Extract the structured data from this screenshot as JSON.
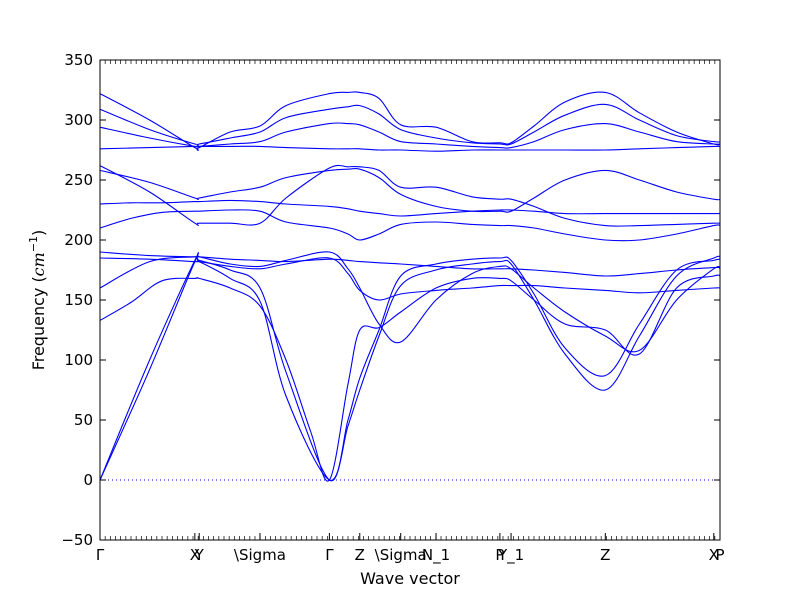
{
  "chart_data": {
    "type": "line",
    "title": "",
    "xlabel": "Wave vector",
    "ylabel_prefix": "Frequency (",
    "ylabel_unit": "cm",
    "ylabel_exp": "−1",
    "ylabel_suffix": ")",
    "ylim": [
      -50,
      350
    ],
    "yticks": [
      -50,
      0,
      50,
      100,
      150,
      200,
      250,
      300,
      350
    ],
    "xlim": [
      0,
      1
    ],
    "grid": false,
    "legend": "none",
    "line_color": "#0000ff",
    "zero_line_color": "#0000ff",
    "high_symmetry_points": [
      {
        "x": 0.0,
        "label": "Γ"
      },
      {
        "x": 0.153,
        "label": "X"
      },
      {
        "x": 0.16,
        "label": "Y"
      },
      {
        "x": 0.258,
        "label": "\\Sigma"
      },
      {
        "x": 0.37,
        "label": "Γ"
      },
      {
        "x": 0.419,
        "label": "Z"
      },
      {
        "x": 0.485,
        "label": "\\Sigma"
      },
      {
        "x": 0.542,
        "label": "N_1"
      },
      {
        "x": 0.645,
        "label": "P"
      },
      {
        "x": 0.663,
        "label": "Y_1"
      },
      {
        "x": 0.815,
        "label": "Z"
      },
      {
        "x": 0.99,
        "label": "X"
      },
      {
        "x": 1.0,
        "label": "P"
      }
    ],
    "series": [
      {
        "x": [
          0,
          0.08,
          0.153,
          0.16,
          0.21,
          0.258,
          0.3,
          0.37,
          0.4,
          0.419,
          0.45,
          0.485,
          0.542,
          0.6,
          0.645,
          0.663,
          0.7,
          0.75,
          0.815,
          0.87,
          0.93,
          0.99,
          1.0
        ],
        "values": [
          0,
          92,
          182,
          182,
          168,
          149,
          70,
          0,
          45,
          75,
          120,
          162,
          175,
          180,
          182,
          180,
          150,
          105,
          75,
          120,
          170,
          185,
          186
        ]
      },
      {
        "x": [
          0,
          0.08,
          0.153,
          0.16,
          0.21,
          0.258,
          0.3,
          0.37,
          0.4,
          0.419,
          0.45,
          0.485,
          0.542,
          0.6,
          0.645,
          0.663,
          0.7,
          0.75,
          0.815,
          0.87,
          0.93,
          0.99,
          1.0
        ],
        "values": [
          0,
          100,
          183,
          183,
          175,
          160,
          90,
          0,
          50,
          85,
          125,
          170,
          180,
          184,
          185,
          183,
          155,
          110,
          87,
          130,
          175,
          183,
          184
        ]
      },
      {
        "x": [
          0,
          0.05,
          0.1,
          0.153,
          0.16,
          0.21,
          0.258,
          0.3,
          0.34,
          0.37,
          0.4,
          0.419,
          0.45,
          0.485,
          0.542,
          0.6,
          0.645,
          0.663,
          0.7,
          0.75,
          0.815,
          0.87,
          0.93,
          0.99,
          1.0
        ],
        "values": [
          133,
          148,
          166,
          168,
          168,
          160,
          145,
          100,
          40,
          0,
          80,
          125,
          127,
          140,
          160,
          168,
          168,
          166,
          150,
          130,
          125,
          105,
          160,
          170,
          170
        ]
      },
      {
        "x": [
          0,
          0.08,
          0.153,
          0.16,
          0.21,
          0.258,
          0.3,
          0.37,
          0.4,
          0.419,
          0.45,
          0.485,
          0.542,
          0.6,
          0.645,
          0.663,
          0.7,
          0.75,
          0.815,
          0.87,
          0.93,
          0.99,
          1.0
        ],
        "values": [
          160,
          182,
          186,
          186,
          180,
          178,
          183,
          190,
          176,
          160,
          130,
          115,
          150,
          172,
          178,
          176,
          160,
          140,
          120,
          108,
          150,
          176,
          176
        ]
      },
      {
        "x": [
          0,
          0.08,
          0.153,
          0.16,
          0.21,
          0.258,
          0.3,
          0.37,
          0.4,
          0.419,
          0.45,
          0.485,
          0.542,
          0.6,
          0.645,
          0.663,
          0.7,
          0.75,
          0.815,
          0.87,
          0.93,
          0.99,
          1.0
        ],
        "values": [
          185,
          184,
          182,
          182,
          178,
          176,
          180,
          185,
          172,
          158,
          150,
          155,
          158,
          160,
          162,
          162,
          162,
          160,
          158,
          156,
          158,
          160,
          160
        ]
      },
      {
        "x": [
          0,
          0.08,
          0.153,
          0.16,
          0.21,
          0.258,
          0.3,
          0.37,
          0.4,
          0.419,
          0.45,
          0.485,
          0.542,
          0.6,
          0.645,
          0.663,
          0.7,
          0.75,
          0.815,
          0.87,
          0.93,
          0.99,
          1.0
        ],
        "values": [
          190,
          187,
          186,
          186,
          184,
          183,
          182,
          184,
          183,
          182,
          181,
          180,
          178,
          176,
          176,
          176,
          175,
          173,
          170,
          172,
          175,
          177,
          177
        ]
      },
      {
        "x": [
          0,
          0.05,
          0.1,
          0.153,
          0.16,
          0.21,
          0.258,
          0.3,
          0.37,
          0.4,
          0.419,
          0.45,
          0.485,
          0.542,
          0.6,
          0.645,
          0.663,
          0.7,
          0.75,
          0.815,
          0.87,
          0.93,
          0.99,
          1.0
        ],
        "values": [
          210,
          218,
          223,
          224,
          224,
          225,
          224,
          215,
          210,
          205,
          200,
          205,
          213,
          215,
          213,
          212,
          212,
          210,
          205,
          200,
          200,
          205,
          212,
          212
        ]
      },
      {
        "x": [
          0,
          0.05,
          0.1,
          0.153,
          0.16,
          0.21,
          0.258,
          0.3,
          0.37,
          0.4,
          0.419,
          0.45,
          0.485,
          0.542,
          0.6,
          0.645,
          0.663,
          0.7,
          0.75,
          0.815,
          0.87,
          0.93,
          0.99,
          1.0
        ],
        "values": [
          230,
          231,
          231,
          232,
          232,
          233,
          232,
          230,
          228,
          226,
          224,
          222,
          220,
          222,
          224,
          225,
          225,
          224,
          222,
          222,
          222,
          222,
          222,
          222
        ]
      },
      {
        "x": [
          0,
          0.08,
          0.153,
          0.16,
          0.21,
          0.258,
          0.3,
          0.37,
          0.4,
          0.419,
          0.45,
          0.485,
          0.542,
          0.6,
          0.645,
          0.663,
          0.7,
          0.75,
          0.815,
          0.87,
          0.93,
          0.99,
          1.0
        ],
        "values": [
          258,
          248,
          235,
          235,
          240,
          244,
          252,
          258,
          259,
          259,
          252,
          238,
          228,
          224,
          224,
          224,
          235,
          250,
          258,
          250,
          240,
          234,
          234
        ]
      },
      {
        "x": [
          0,
          0.08,
          0.153,
          0.16,
          0.21,
          0.258,
          0.3,
          0.37,
          0.4,
          0.419,
          0.45,
          0.485,
          0.542,
          0.6,
          0.645,
          0.663,
          0.7,
          0.75,
          0.815,
          0.87,
          0.93,
          0.99,
          1.0
        ],
        "values": [
          262,
          240,
          214,
          214,
          214,
          214,
          235,
          260,
          261,
          261,
          258,
          244,
          244,
          236,
          234,
          234,
          228,
          218,
          212,
          212,
          213,
          214,
          214
        ]
      },
      {
        "x": [
          0,
          0.08,
          0.153,
          0.16,
          0.21,
          0.258,
          0.3,
          0.37,
          0.4,
          0.419,
          0.45,
          0.485,
          0.542,
          0.6,
          0.645,
          0.663,
          0.7,
          0.75,
          0.815,
          0.87,
          0.93,
          0.99,
          1.0
        ],
        "values": [
          276,
          277,
          278,
          278,
          278,
          278,
          277,
          276,
          276,
          276,
          275,
          275,
          274,
          275,
          275,
          275,
          275,
          275,
          275,
          276,
          277,
          278,
          278
        ]
      },
      {
        "x": [
          0,
          0.08,
          0.153,
          0.16,
          0.21,
          0.258,
          0.3,
          0.37,
          0.4,
          0.419,
          0.45,
          0.485,
          0.542,
          0.6,
          0.645,
          0.663,
          0.7,
          0.75,
          0.815,
          0.87,
          0.93,
          0.99,
          1.0
        ],
        "values": [
          294,
          285,
          278,
          278,
          280,
          282,
          290,
          297,
          297,
          296,
          290,
          282,
          280,
          278,
          277,
          277,
          282,
          292,
          297,
          290,
          282,
          280,
          280
        ]
      },
      {
        "x": [
          0,
          0.08,
          0.153,
          0.16,
          0.21,
          0.258,
          0.3,
          0.37,
          0.4,
          0.419,
          0.45,
          0.485,
          0.542,
          0.6,
          0.645,
          0.663,
          0.7,
          0.75,
          0.815,
          0.87,
          0.93,
          0.99,
          1.0
        ],
        "values": [
          309,
          292,
          280,
          280,
          285,
          290,
          302,
          309,
          311,
          312,
          305,
          292,
          285,
          281,
          280,
          280,
          290,
          304,
          313,
          300,
          287,
          282,
          282
        ]
      },
      {
        "x": [
          0,
          0.08,
          0.153,
          0.16,
          0.21,
          0.258,
          0.3,
          0.37,
          0.4,
          0.419,
          0.45,
          0.485,
          0.542,
          0.6,
          0.645,
          0.663,
          0.7,
          0.75,
          0.815,
          0.87,
          0.93,
          0.99,
          1.0
        ],
        "values": [
          322,
          300,
          277,
          277,
          290,
          295,
          312,
          322,
          323,
          323,
          318,
          296,
          294,
          282,
          281,
          281,
          295,
          315,
          323,
          306,
          290,
          280,
          280
        ]
      }
    ]
  }
}
